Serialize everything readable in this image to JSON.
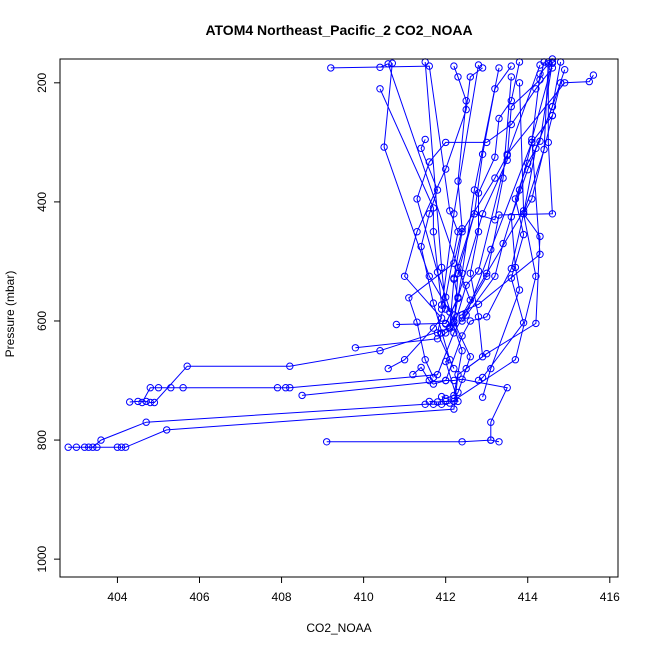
{
  "chart_data": {
    "type": "line",
    "title": "ATOM4 Northeast_Pacific_2 CO2_NOAA",
    "xlabel": "CO2_NOAA",
    "ylabel": "Pressure (mbar)",
    "xlim": [
      402.6,
      416.2
    ],
    "ylim": [
      1030,
      160
    ],
    "y_reversed": true,
    "grid": false,
    "x_ticks": [
      404,
      406,
      408,
      410,
      412,
      414,
      416
    ],
    "y_ticks": [
      200,
      400,
      600,
      800,
      1000
    ],
    "series": [
      {
        "points": [
          [
            402.8,
            812
          ],
          [
            403.0,
            812
          ],
          [
            403.3,
            812
          ],
          [
            403.5,
            812
          ],
          [
            404.0,
            812
          ],
          [
            404.1,
            812
          ],
          [
            404.2,
            812
          ],
          [
            405.2,
            783
          ],
          [
            412.2,
            748
          ],
          [
            412.3,
            690
          ],
          [
            413.0,
            655
          ],
          [
            414.2,
            604
          ],
          [
            414.3,
            458
          ],
          [
            413.9,
            420
          ],
          [
            414.2,
            310
          ],
          [
            414.6,
            240
          ],
          [
            414.8,
            165
          ]
        ]
      },
      {
        "points": [
          [
            403.2,
            812
          ],
          [
            403.4,
            812
          ],
          [
            403.6,
            800
          ],
          [
            404.7,
            770
          ],
          [
            411.5,
            740
          ],
          [
            411.7,
            740
          ],
          [
            411.9,
            740
          ],
          [
            412.1,
            738
          ],
          [
            413.7,
            665
          ],
          [
            414.2,
            525
          ],
          [
            413.9,
            420
          ],
          [
            414.4,
            312
          ],
          [
            414.5,
            165
          ]
        ]
      },
      {
        "points": [
          [
            404.3,
            736
          ],
          [
            404.5,
            735
          ],
          [
            404.7,
            735
          ],
          [
            404.8,
            737
          ],
          [
            404.9,
            737
          ],
          [
            405.7,
            676
          ],
          [
            408.2,
            676
          ],
          [
            410.4,
            650
          ],
          [
            412.1,
            612
          ],
          [
            412.2,
            590
          ],
          [
            412.8,
            572
          ],
          [
            414.3,
            488
          ],
          [
            414.1,
            295
          ],
          [
            414.6,
            167
          ]
        ]
      },
      {
        "points": [
          [
            404.6,
            737
          ],
          [
            404.8,
            712
          ],
          [
            405.0,
            712
          ],
          [
            405.3,
            712
          ],
          [
            405.6,
            712
          ],
          [
            407.9,
            712
          ],
          [
            408.1,
            712
          ],
          [
            408.2,
            712
          ],
          [
            411.8,
            690
          ],
          [
            412.2,
            620
          ],
          [
            412.4,
            595
          ],
          [
            413.0,
            525
          ],
          [
            413.3,
            422
          ],
          [
            414.6,
            420
          ],
          [
            414.5,
            300
          ],
          [
            414.5,
            168
          ]
        ]
      },
      {
        "points": [
          [
            408.5,
            725
          ],
          [
            412.0,
            700
          ],
          [
            412.2,
            700
          ],
          [
            412.4,
            698
          ],
          [
            413.5,
            712
          ],
          [
            413.1,
            770
          ],
          [
            413.1,
            800
          ],
          [
            413.3,
            803
          ]
        ]
      },
      {
        "points": [
          [
            409.1,
            803
          ],
          [
            412.4,
            803
          ],
          [
            413.1,
            800
          ]
        ]
      },
      {
        "points": [
          [
            409.8,
            645
          ],
          [
            411.8,
            630
          ],
          [
            412.0,
            620
          ],
          [
            412.2,
            610
          ],
          [
            412.5,
            540
          ],
          [
            412.8,
            516
          ],
          [
            413.5,
            320
          ],
          [
            414.9,
            200
          ],
          [
            415.5,
            198
          ],
          [
            415.6,
            187
          ]
        ]
      },
      {
        "points": [
          [
            410.8,
            606
          ],
          [
            412.0,
            604
          ],
          [
            412.3,
            562
          ],
          [
            412.2,
            528
          ],
          [
            412.4,
            450
          ],
          [
            413.2,
            360
          ],
          [
            413.5,
            322
          ],
          [
            414.3,
            170
          ]
        ]
      },
      {
        "points": [
          [
            410.6,
            680
          ],
          [
            411.0,
            665
          ],
          [
            411.7,
            612
          ],
          [
            411.9,
            595
          ],
          [
            411.0,
            525
          ],
          [
            411.3,
            450
          ],
          [
            412.0,
            345
          ],
          [
            412.5,
            245
          ],
          [
            412.6,
            190
          ],
          [
            412.9,
            175
          ]
        ]
      },
      {
        "points": [
          [
            411.7,
            695
          ],
          [
            411.5,
            665
          ],
          [
            411.3,
            602
          ],
          [
            411.1,
            561
          ],
          [
            412.2,
            503
          ],
          [
            412.4,
            445
          ],
          [
            412.3,
            365
          ],
          [
            412.5,
            230
          ],
          [
            412.3,
            190
          ],
          [
            412.2,
            172
          ]
        ]
      },
      {
        "points": [
          [
            411.6,
            735
          ],
          [
            411.8,
            736
          ],
          [
            412.0,
            735
          ],
          [
            412.2,
            735
          ],
          [
            412.3,
            735
          ],
          [
            412.0,
            668
          ],
          [
            412.1,
            665
          ],
          [
            411.7,
            570
          ],
          [
            411.4,
            475
          ],
          [
            411.6,
            420
          ],
          [
            411.8,
            380
          ],
          [
            411.4,
            310
          ],
          [
            411.5,
            295
          ]
        ]
      },
      {
        "points": [
          [
            411.9,
            727
          ],
          [
            412.0,
            730
          ],
          [
            412.2,
            725
          ],
          [
            412.4,
            650
          ],
          [
            412.2,
            610
          ],
          [
            412.3,
            520
          ],
          [
            412.7,
            420
          ],
          [
            412.9,
            320
          ],
          [
            413.2,
            210
          ],
          [
            413.6,
            172
          ]
        ]
      },
      {
        "points": [
          [
            412.2,
            730
          ],
          [
            412.3,
            720
          ],
          [
            412.6,
            660
          ],
          [
            412.2,
            602
          ],
          [
            411.8,
            518
          ],
          [
            411.3,
            395
          ],
          [
            411.6,
            333
          ],
          [
            412.0,
            300
          ],
          [
            413.0,
            300
          ],
          [
            413.6,
            270
          ],
          [
            414.2,
            210
          ],
          [
            414.6,
            175
          ]
        ]
      },
      {
        "points": [
          [
            412.5,
            680
          ],
          [
            412.9,
            660
          ],
          [
            412.8,
            593
          ],
          [
            412.6,
            520
          ],
          [
            412.8,
            450
          ],
          [
            412.8,
            385
          ],
          [
            413.2,
            325
          ],
          [
            413.3,
            260
          ],
          [
            413.6,
            230
          ],
          [
            413.8,
            165
          ]
        ]
      },
      {
        "points": [
          [
            412.8,
            700
          ],
          [
            412.9,
            695
          ],
          [
            413.9,
            603
          ],
          [
            413.6,
            528
          ],
          [
            413.9,
            455
          ],
          [
            413.7,
            395
          ],
          [
            414.0,
            335
          ],
          [
            414.3,
            298
          ],
          [
            414.6,
            165
          ]
        ]
      },
      {
        "points": [
          [
            412.9,
            728
          ],
          [
            413.1,
            680
          ],
          [
            413.8,
            548
          ],
          [
            413.7,
            510
          ],
          [
            413.6,
            425
          ],
          [
            414.0,
            346
          ],
          [
            414.6,
            240
          ],
          [
            414.9,
            178
          ]
        ]
      },
      {
        "points": [
          [
            411.2,
            690
          ],
          [
            411.4,
            678
          ],
          [
            411.6,
            700
          ],
          [
            411.7,
            706
          ],
          [
            412.0,
            700
          ],
          [
            412.4,
            625
          ],
          [
            412.6,
            600
          ],
          [
            413.0,
            593
          ],
          [
            413.6,
            512
          ],
          [
            413.9,
            420
          ],
          [
            414.1,
            395
          ],
          [
            414.6,
            255
          ],
          [
            414.8,
            200
          ]
        ]
      },
      {
        "points": [
          [
            409.2,
            175
          ],
          [
            411.6,
            172
          ],
          [
            412.1,
            415
          ],
          [
            412.3,
            450
          ],
          [
            412.0,
            560
          ],
          [
            411.8,
            620
          ],
          [
            412.2,
            680
          ]
        ]
      },
      {
        "points": [
          [
            410.4,
            174
          ],
          [
            410.6,
            168
          ],
          [
            412.3,
            510
          ],
          [
            412.6,
            565
          ]
        ]
      },
      {
        "points": [
          [
            410.7,
            167
          ],
          [
            410.5,
            308
          ],
          [
            411.6,
            525
          ],
          [
            412.1,
            585
          ]
        ]
      },
      {
        "points": [
          [
            410.4,
            210
          ],
          [
            411.7,
            410
          ],
          [
            411.7,
            450
          ],
          [
            411.9,
            573
          ]
        ]
      },
      {
        "points": [
          [
            411.5,
            165
          ],
          [
            411.9,
            510
          ],
          [
            412.0,
            580
          ]
        ]
      },
      {
        "points": [
          [
            412.8,
            170
          ],
          [
            412.2,
            420
          ],
          [
            411.9,
            580
          ]
        ]
      },
      {
        "points": [
          [
            413.3,
            175
          ],
          [
            412.7,
            380
          ],
          [
            412.4,
            520
          ],
          [
            412.2,
            600
          ],
          [
            411.9,
            620
          ]
        ]
      },
      {
        "points": [
          [
            413.6,
            190
          ],
          [
            413.4,
            360
          ],
          [
            413.2,
            430
          ],
          [
            412.7,
            420
          ],
          [
            412.2,
            530
          ],
          [
            412.1,
            610
          ]
        ]
      },
      {
        "points": [
          [
            414.6,
            160
          ],
          [
            414.3,
            185
          ],
          [
            414.1,
            300
          ],
          [
            413.8,
            380
          ],
          [
            413.4,
            470
          ],
          [
            413.2,
            525
          ],
          [
            412.4,
            600
          ]
        ]
      },
      {
        "points": [
          [
            414.4,
            165
          ],
          [
            414.3,
            195
          ],
          [
            413.6,
            240
          ],
          [
            413.5,
            330
          ],
          [
            412.9,
            420
          ],
          [
            412.3,
            560
          ],
          [
            412.0,
            605
          ]
        ]
      },
      {
        "points": [
          [
            413.8,
            200
          ],
          [
            413.9,
            415
          ],
          [
            413.0,
            520
          ],
          [
            412.4,
            590
          ]
        ]
      },
      {
        "points": [
          [
            414.6,
            255
          ],
          [
            414.1,
            300
          ],
          [
            413.1,
            480
          ],
          [
            412.5,
            590
          ]
        ]
      }
    ]
  }
}
